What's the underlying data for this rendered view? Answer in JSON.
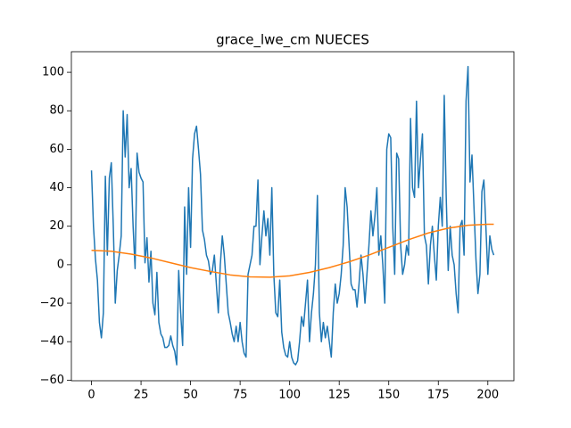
{
  "chart_data": {
    "type": "line",
    "title": "grace_lwe_cm NUECES",
    "xlim": [
      -10.15,
      213.15
    ],
    "ylim": [
      -60.3,
      110.7
    ],
    "xticks": [
      0,
      25,
      50,
      75,
      100,
      125,
      150,
      175,
      200
    ],
    "yticks": [
      {
        "value": -60,
        "label": "−60"
      },
      {
        "value": -40,
        "label": "−40"
      },
      {
        "value": -20,
        "label": "−20"
      },
      0,
      20,
      40,
      60,
      80,
      100
    ],
    "series": [
      {
        "color": "#1f77b4",
        "x": [
          0,
          1,
          2,
          3,
          4,
          5,
          6,
          7,
          8,
          9,
          10,
          11,
          12,
          13,
          14,
          15,
          16,
          17,
          18,
          19,
          20,
          21,
          22,
          23,
          24,
          25,
          26,
          27,
          28,
          29,
          30,
          31,
          32,
          33,
          34,
          35,
          36,
          37,
          38,
          39,
          40,
          41,
          42,
          43,
          44,
          45,
          46,
          47,
          48,
          49,
          50,
          51,
          52,
          53,
          54,
          55,
          56,
          57,
          58,
          59,
          60,
          61,
          62,
          63,
          64,
          65,
          66,
          67,
          68,
          69,
          70,
          71,
          72,
          73,
          74,
          75,
          76,
          77,
          78,
          79,
          80,
          81,
          82,
          83,
          84,
          85,
          86,
          87,
          88,
          89,
          90,
          91,
          92,
          93,
          94,
          95,
          96,
          97,
          98,
          99,
          100,
          101,
          102,
          103,
          104,
          105,
          106,
          107,
          108,
          109,
          110,
          111,
          112,
          113,
          114,
          115,
          116,
          117,
          118,
          119,
          120,
          121,
          122,
          123,
          124,
          125,
          126,
          127,
          128,
          129,
          130,
          131,
          132,
          133,
          134,
          135,
          136,
          137,
          138,
          139,
          140,
          141,
          142,
          143,
          144,
          145,
          146,
          147,
          148,
          149,
          150,
          151,
          152,
          153,
          154,
          155,
          156,
          157,
          158,
          159,
          160,
          161,
          162,
          163,
          164,
          165,
          166,
          167,
          168,
          169,
          170,
          171,
          172,
          173,
          174,
          175,
          176,
          177,
          178,
          179,
          180,
          181,
          182,
          183,
          184,
          185,
          186,
          187,
          188,
          189,
          190,
          191,
          192,
          193,
          194,
          195,
          196,
          197,
          198,
          199,
          200,
          201,
          202,
          203
        ],
        "values": [
          49,
          20,
          3,
          -8,
          -30,
          -38,
          -25,
          46,
          5,
          45,
          53,
          20,
          -20,
          -3,
          5,
          15,
          80,
          56,
          78,
          40,
          50,
          20,
          -2,
          58,
          48,
          45,
          43,
          1,
          14,
          -9,
          7,
          -20,
          -26,
          -4,
          -30,
          -36,
          -38,
          -43,
          -43,
          -42,
          -37,
          -42,
          -45,
          -52,
          -3,
          -25,
          -42,
          30,
          -5,
          40,
          9,
          55,
          68,
          72,
          60,
          47,
          18,
          13,
          5,
          2,
          -5,
          -3,
          5,
          -10,
          -25,
          0,
          15,
          5,
          -10,
          -25,
          -30,
          -36,
          -40,
          -32,
          -40,
          -30,
          -40,
          -46,
          -48,
          -5,
          0,
          5,
          20,
          20,
          44,
          0,
          15,
          28,
          15,
          24,
          5,
          40,
          -5,
          -25,
          -27,
          -8,
          -35,
          -43,
          -47,
          -48,
          -40,
          -48,
          -51,
          -52,
          -50,
          -40,
          -27,
          -32,
          -20,
          -8,
          -40,
          -25,
          -15,
          0,
          36,
          -25,
          -40,
          -30,
          -38,
          -32,
          -40,
          -48,
          -25,
          -10,
          -20,
          -15,
          -5,
          10,
          40,
          30,
          10,
          -10,
          -13,
          -13,
          -22,
          -10,
          5,
          -5,
          -20,
          -5,
          10,
          28,
          15,
          25,
          40,
          5,
          15,
          0,
          -20,
          60,
          68,
          66,
          20,
          -5,
          58,
          55,
          10,
          -5,
          0,
          10,
          5,
          76,
          40,
          35,
          85,
          40,
          55,
          68,
          15,
          10,
          -10,
          10,
          20,
          5,
          -8,
          20,
          35,
          20,
          88,
          35,
          -3,
          20,
          5,
          0,
          -15,
          -25,
          20,
          23,
          5,
          85,
          103,
          43,
          57,
          30,
          3,
          -15,
          -5,
          38,
          44,
          20,
          -5,
          15,
          8,
          5
        ]
      },
      {
        "color": "#ff7f0e",
        "x": [
          0,
          10,
          20,
          30,
          40,
          50,
          60,
          70,
          80,
          90,
          100,
          110,
          120,
          130,
          140,
          150,
          160,
          170,
          180,
          190,
          200,
          203
        ],
        "values": [
          7.5,
          7,
          5.5,
          3.5,
          1,
          -1.5,
          -3.5,
          -5.3,
          -6.3,
          -6.5,
          -5.8,
          -4,
          -1.5,
          1.5,
          5,
          9,
          13,
          16.5,
          19,
          20.5,
          21,
          21
        ]
      }
    ]
  }
}
